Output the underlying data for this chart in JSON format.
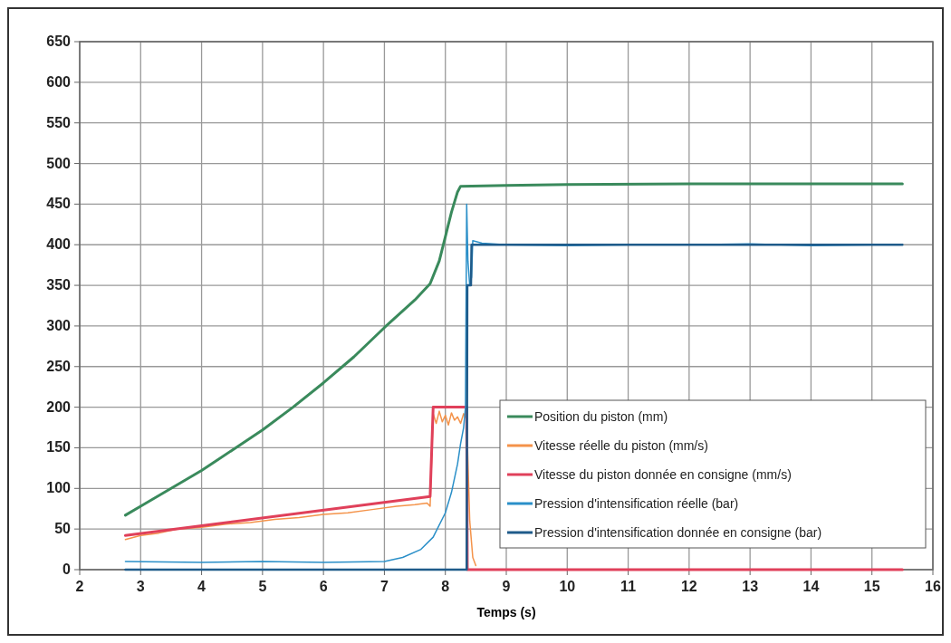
{
  "chart_data": {
    "type": "line",
    "xlabel": "Temps (s)",
    "xlim": [
      2,
      16
    ],
    "xticks": [
      2,
      3,
      4,
      5,
      6,
      7,
      8,
      9,
      10,
      11,
      12,
      13,
      14,
      15,
      16
    ],
    "ylim": [
      0,
      650
    ],
    "yticks": [
      0,
      50,
      100,
      150,
      200,
      250,
      300,
      350,
      400,
      450,
      500,
      550,
      600,
      650
    ],
    "grid": true,
    "legend": "bottom right",
    "marker": "none",
    "line_style": "solid",
    "series": [
      {
        "name": "Position du piston (mm)",
        "color": "#3a8a5c",
        "x": [
          2.75,
          3,
          3.5,
          4,
          4.5,
          5,
          5.5,
          6,
          6.5,
          7,
          7.5,
          7.75,
          7.9,
          8,
          8.1,
          8.2,
          8.25,
          9,
          10,
          12,
          15.5
        ],
        "values": [
          67,
          78,
          100,
          122,
          147,
          172,
          200,
          230,
          262,
          298,
          332,
          352,
          380,
          410,
          440,
          465,
          472,
          473,
          474,
          475,
          475
        ]
      },
      {
        "name": "Vitesse réelle du piston (mm/s)",
        "color": "#f4934a",
        "x": [
          2.75,
          3,
          3.3,
          3.6,
          4,
          4.4,
          4.8,
          5.2,
          5.6,
          6,
          6.4,
          6.8,
          7.2,
          7.5,
          7.7,
          7.75,
          7.8,
          7.85,
          7.9,
          7.95,
          8,
          8.05,
          8.1,
          8.15,
          8.2,
          8.25,
          8.3,
          8.35,
          8.4,
          8.45,
          8.5
        ],
        "values": [
          37,
          42,
          45,
          50,
          52,
          56,
          58,
          62,
          64,
          68,
          70,
          74,
          78,
          80,
          82,
          78,
          192,
          180,
          195,
          182,
          190,
          178,
          193,
          184,
          188,
          180,
          192,
          185,
          60,
          15,
          5
        ]
      },
      {
        "name": "Vitesse du piston donnée en consigne (mm/s)",
        "color": "#e0405a",
        "x": [
          2.75,
          7.75,
          7.8,
          8.35,
          8.36,
          15.5
        ],
        "values": [
          42,
          90,
          200,
          200,
          0,
          0
        ]
      },
      {
        "name": "Pression d'intensification réelle (bar)",
        "color": "#2a8fc8",
        "x": [
          2.75,
          4,
          5,
          6,
          7,
          7.3,
          7.6,
          7.8,
          8,
          8.1,
          8.2,
          8.25,
          8.3,
          8.33,
          8.35,
          8.37,
          8.4,
          8.43,
          8.45,
          8.6,
          9,
          10,
          11,
          12,
          13,
          14,
          15,
          15.5
        ],
        "values": [
          10,
          9,
          10,
          9,
          10,
          15,
          25,
          40,
          70,
          95,
          130,
          155,
          175,
          200,
          450,
          380,
          350,
          360,
          405,
          402,
          400,
          399,
          400,
          400,
          401,
          399,
          400,
          400
        ]
      },
      {
        "name": "Pression d'intensification donnée en consigne (bar)",
        "color": "#1f5b8a",
        "x": [
          2.75,
          8.35,
          8.36,
          8.42,
          8.43,
          15.5
        ],
        "values": [
          0,
          0,
          350,
          350,
          400,
          400
        ]
      }
    ]
  }
}
